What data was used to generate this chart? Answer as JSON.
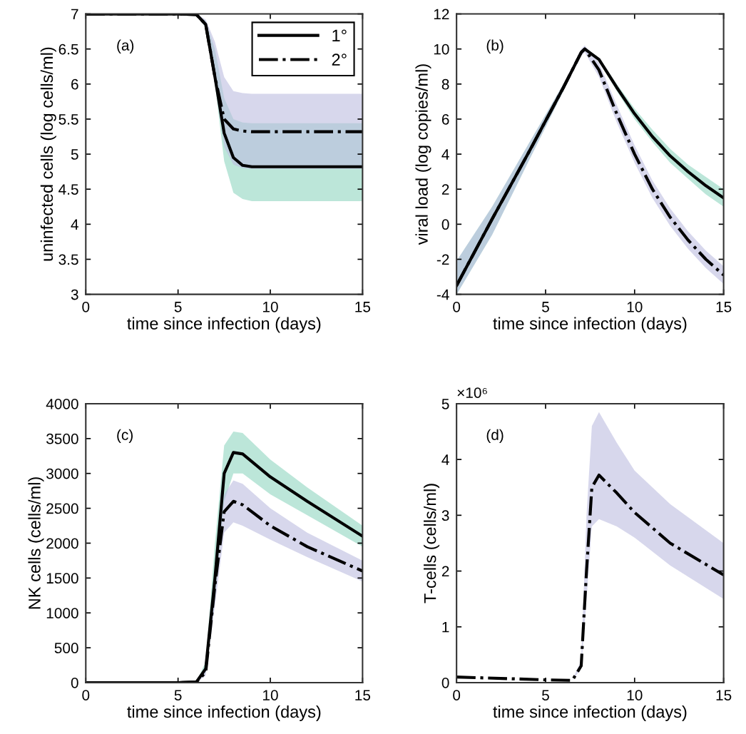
{
  "chart_data": [
    {
      "type": "line",
      "annotations": [
        "(a)"
      ],
      "xlabel": "time since infection (days)",
      "ylabel": "uninfected cells (log cells/ml)",
      "xlim": [
        0,
        15
      ],
      "xticks": [
        0,
        5,
        10,
        15
      ],
      "ylim": [
        3,
        7
      ],
      "yticks": [
        3,
        3.5,
        4,
        4.5,
        5,
        5.5,
        6,
        6.5,
        7
      ],
      "legend": "top right",
      "series": [
        {
          "name": "1°",
          "color": "#000000",
          "line_style": "solid",
          "x": [
            0,
            5,
            6,
            6.5,
            7,
            7.5,
            8,
            8.5,
            9,
            15
          ],
          "values": [
            7,
            7,
            6.99,
            6.85,
            6.1,
            5.3,
            4.95,
            4.84,
            4.82,
            4.82
          ],
          "lower": [
            7,
            7,
            6.99,
            6.8,
            6.0,
            4.9,
            4.45,
            4.36,
            4.33,
            4.33
          ],
          "upper": [
            7,
            7,
            7,
            6.9,
            6.5,
            5.8,
            5.5,
            5.45,
            5.44,
            5.44
          ]
        },
        {
          "name": "2°",
          "color": "#000000",
          "line_style": "dashdot",
          "x": [
            0,
            5,
            6,
            6.5,
            7,
            7.5,
            8,
            8.5,
            9,
            15
          ],
          "values": [
            7,
            7,
            6.99,
            6.85,
            6.1,
            5.5,
            5.36,
            5.33,
            5.32,
            5.32
          ],
          "lower": [
            7,
            7,
            6.99,
            6.8,
            6.0,
            5.1,
            4.85,
            4.8,
            4.79,
            4.79
          ],
          "upper": [
            7,
            7,
            7,
            6.92,
            6.6,
            6.1,
            5.9,
            5.87,
            5.86,
            5.86
          ]
        }
      ]
    },
    {
      "type": "line",
      "annotations": [
        "(b)"
      ],
      "xlabel": "time since infection (days)",
      "ylabel": "viral load (log copies/ml)",
      "xlim": [
        0,
        15
      ],
      "xticks": [
        0,
        5,
        10,
        15
      ],
      "ylim": [
        -4,
        12
      ],
      "yticks": [
        -4,
        -2,
        0,
        2,
        4,
        6,
        8,
        10,
        12
      ],
      "series": [
        {
          "color": "#000000",
          "line_style": "solid",
          "x": [
            0,
            2,
            4,
            6,
            7,
            7.2,
            8,
            9,
            10,
            11,
            12,
            13,
            14,
            15
          ],
          "values": [
            -3.5,
            0.3,
            4.0,
            7.8,
            9.8,
            10,
            9.4,
            7.8,
            6.3,
            5.0,
            3.9,
            3.0,
            2.2,
            1.5
          ],
          "lower": [
            -4,
            -0.6,
            3.5,
            7.6,
            9.7,
            9.9,
            9.3,
            7.6,
            6.0,
            4.7,
            3.5,
            2.6,
            1.7,
            1.0
          ],
          "upper": [
            -2.1,
            1.0,
            4.5,
            8.0,
            9.9,
            10.1,
            9.5,
            8.0,
            6.6,
            5.4,
            4.3,
            3.4,
            2.7,
            2.0
          ]
        },
        {
          "color": "#000000",
          "line_style": "dashdot",
          "x": [
            0,
            2,
            4,
            6,
            7,
            7.2,
            8,
            9,
            10,
            11,
            12,
            13,
            14,
            15
          ],
          "values": [
            -3.5,
            0.3,
            4.0,
            7.8,
            9.8,
            10,
            8.8,
            6.3,
            4.0,
            2.0,
            0.4,
            -0.9,
            -2.0,
            -2.9
          ],
          "lower": [
            -4,
            -0.6,
            3.5,
            7.6,
            9.6,
            9.8,
            8.4,
            5.8,
            3.5,
            1.5,
            -0.1,
            -1.4,
            -2.5,
            -3.4
          ],
          "upper": [
            -2.1,
            1.0,
            4.5,
            8.0,
            10.0,
            10.2,
            9.2,
            6.8,
            4.5,
            2.5,
            0.9,
            -0.4,
            -1.5,
            -2.4
          ]
        }
      ]
    },
    {
      "type": "line",
      "annotations": [
        "(c)"
      ],
      "xlabel": "time since infection (days)",
      "ylabel": "NK cells (cells/ml)",
      "xlim": [
        0,
        15
      ],
      "xticks": [
        0,
        5,
        10,
        15
      ],
      "ylim": [
        0,
        4000
      ],
      "yticks": [
        0,
        500,
        1000,
        1500,
        2000,
        2500,
        3000,
        3500,
        4000
      ],
      "series": [
        {
          "color": "#000000",
          "line_style": "solid",
          "x": [
            0,
            5,
            6,
            6.5,
            7,
            7.5,
            8,
            8.5,
            10,
            12,
            15
          ],
          "values": [
            0,
            0,
            10,
            200,
            1500,
            3000,
            3300,
            3280,
            2950,
            2600,
            2100
          ],
          "lower": [
            0,
            0,
            5,
            150,
            1200,
            2600,
            3000,
            3000,
            2700,
            2400,
            1950
          ],
          "upper": [
            0,
            0,
            15,
            300,
            2000,
            3400,
            3600,
            3580,
            3200,
            2800,
            2250
          ]
        },
        {
          "color": "#000000",
          "line_style": "dashdot",
          "x": [
            0,
            5,
            6,
            6.5,
            7,
            7.5,
            8,
            8.5,
            10,
            12,
            15
          ],
          "values": [
            0,
            0,
            10,
            150,
            1400,
            2450,
            2600,
            2550,
            2250,
            1950,
            1600
          ],
          "lower": [
            0,
            0,
            5,
            100,
            1100,
            2150,
            2300,
            2250,
            2050,
            1800,
            1450
          ],
          "upper": [
            0,
            0,
            12,
            250,
            1700,
            2700,
            2900,
            2850,
            2500,
            2150,
            1750
          ]
        }
      ]
    },
    {
      "type": "line",
      "annotations": [
        "(d)",
        "×10⁶"
      ],
      "xlabel": "time since infection (days)",
      "ylabel": "T-cells (cells/ml)",
      "xlim": [
        0,
        15
      ],
      "xticks": [
        0,
        5,
        10,
        15
      ],
      "ylim": [
        0,
        5
      ],
      "yticks": [
        0,
        1,
        2,
        3,
        4,
        5
      ],
      "series": [
        {
          "color": "#000000",
          "line_style": "dashdot",
          "x": [
            0,
            5,
            6.5,
            7,
            7.3,
            7.6,
            8,
            9,
            10,
            12,
            15
          ],
          "values": [
            0.1,
            0.05,
            0.04,
            0.3,
            2.0,
            3.5,
            3.72,
            3.4,
            3.05,
            2.5,
            1.93
          ],
          "lower": [
            0.1,
            0.05,
            0.04,
            0.25,
            1.5,
            2.8,
            2.93,
            2.8,
            2.6,
            2.1,
            1.5
          ],
          "upper": [
            0.1,
            0.05,
            0.04,
            0.4,
            3.0,
            4.6,
            4.85,
            4.3,
            3.8,
            3.2,
            2.5
          ]
        }
      ]
    }
  ]
}
